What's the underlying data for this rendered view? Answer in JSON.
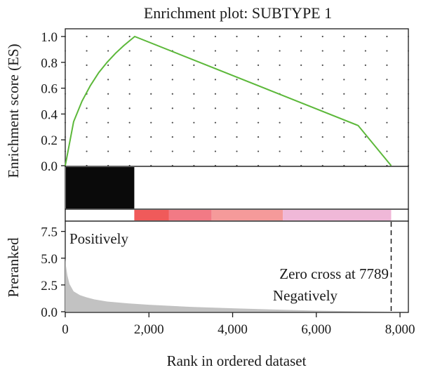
{
  "chart_data": {
    "type": "line",
    "title": "Enrichment plot: SUBTYPE 1",
    "xlabel": "Rank in ordered dataset",
    "xlim": [
      0,
      8200
    ],
    "x_ticks": [
      0,
      2000,
      4000,
      6000,
      8000
    ],
    "x_tick_labels": [
      "0",
      "2,000",
      "4,000",
      "6,000",
      "8,000"
    ],
    "enrichment_panel": {
      "ylabel": "Enrichment score (ES)",
      "ylim": [
        0,
        1.0
      ],
      "y_ticks": [
        0,
        0.2,
        0.4,
        0.6,
        0.8,
        1.0
      ],
      "y_tick_labels": [
        "0.0",
        "0.2",
        "0.4",
        "0.6",
        "0.8",
        "1.0"
      ],
      "grid": "dotted",
      "line_color": "#5cb83a",
      "series": [
        {
          "x": [
            0,
            200,
            400,
            600,
            800,
            1000,
            1200,
            1400,
            1660,
            3000,
            5000,
            7000,
            7789
          ],
          "y": [
            0,
            0.34,
            0.5,
            0.62,
            0.72,
            0.8,
            0.87,
            0.93,
            1.0,
            0.827,
            0.569,
            0.311,
            0.0
          ]
        }
      ]
    },
    "hits_band": {
      "hit_range": [
        0,
        1650
      ],
      "hit_color": "#0a0a0a"
    },
    "rank_band": {
      "segments": [
        {
          "from": 1650,
          "to": 2480,
          "color": "#f05a5a"
        },
        {
          "from": 2480,
          "to": 3500,
          "color": "#f27a85"
        },
        {
          "from": 3500,
          "to": 5200,
          "color": "#f59a9a"
        },
        {
          "from": 5200,
          "to": 7789,
          "color": "#f0b8d8"
        }
      ]
    },
    "preranked_panel": {
      "ylabel": "Preranked",
      "ylim": [
        0,
        8.0
      ],
      "y_ticks": [
        0,
        2.5,
        5.0,
        7.5
      ],
      "y_tick_labels": [
        "0.0",
        "2.5",
        "5.0",
        "7.5"
      ],
      "fill_color": "#c2c2c2",
      "x": [
        0,
        20,
        50,
        100,
        200,
        350,
        500,
        700,
        1000,
        1500,
        2000,
        3000,
        4000,
        5000,
        6000,
        7000,
        7789
      ],
      "y": [
        5.0,
        4.2,
        3.4,
        2.6,
        1.9,
        1.55,
        1.35,
        1.15,
        0.95,
        0.78,
        0.65,
        0.45,
        0.32,
        0.2,
        0.1,
        0.04,
        0.0
      ]
    },
    "annotations": {
      "positively": "Positively",
      "negatively": "Negatively",
      "zero_cross_label": "Zero cross at 7789",
      "zero_cross_x": 7789
    }
  }
}
